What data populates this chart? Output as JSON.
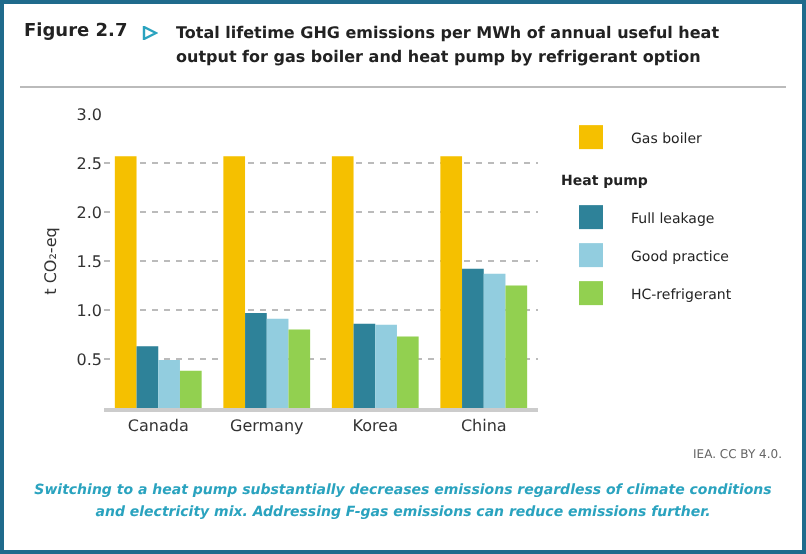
{
  "chart_data": {
    "type": "bar",
    "title": "Total lifetime GHG emissions per MWh of annual useful heat output for gas boiler and heat pump by refrigerant option",
    "ylabel": "t CO₂-eq",
    "legend_title": "Heat pump",
    "annotations": [
      "Figure 2.7",
      "IEA. CC BY 4.0.",
      "Switching to a heat pump substantially decreases emissions regardless of climate conditions and electricity mix. Addressing F-gas emissions can reduce emissions further."
    ],
    "categories": [
      "Canada",
      "Germany",
      "Korea",
      "China"
    ],
    "series": [
      {
        "name": "Gas boiler",
        "color": "#f5c000",
        "values": [
          2.57,
          2.57,
          2.57,
          2.57
        ]
      },
      {
        "name": "Full leakage",
        "color": "#2e8299",
        "values": [
          0.63,
          0.97,
          0.86,
          1.42
        ]
      },
      {
        "name": "Good practice",
        "color": "#92cddf",
        "values": [
          0.49,
          0.91,
          0.85,
          1.37
        ]
      },
      {
        "name": "HC-refrigerant",
        "color": "#92d050",
        "values": [
          0.38,
          0.8,
          0.73,
          1.25
        ]
      }
    ],
    "ylim": [
      0,
      3.0
    ],
    "yticks": [
      {
        "value": 0,
        "label": null
      },
      {
        "value": 0.5,
        "label": "0.5"
      },
      {
        "value": 1,
        "label": "1.0"
      },
      {
        "value": 1.5,
        "label": "1.5"
      },
      {
        "value": 2,
        "label": "2.0"
      },
      {
        "value": 2.5,
        "label": "2.5"
      },
      {
        "value": 3,
        "label": "3.0"
      }
    ],
    "grid": "y",
    "legend": "right"
  }
}
